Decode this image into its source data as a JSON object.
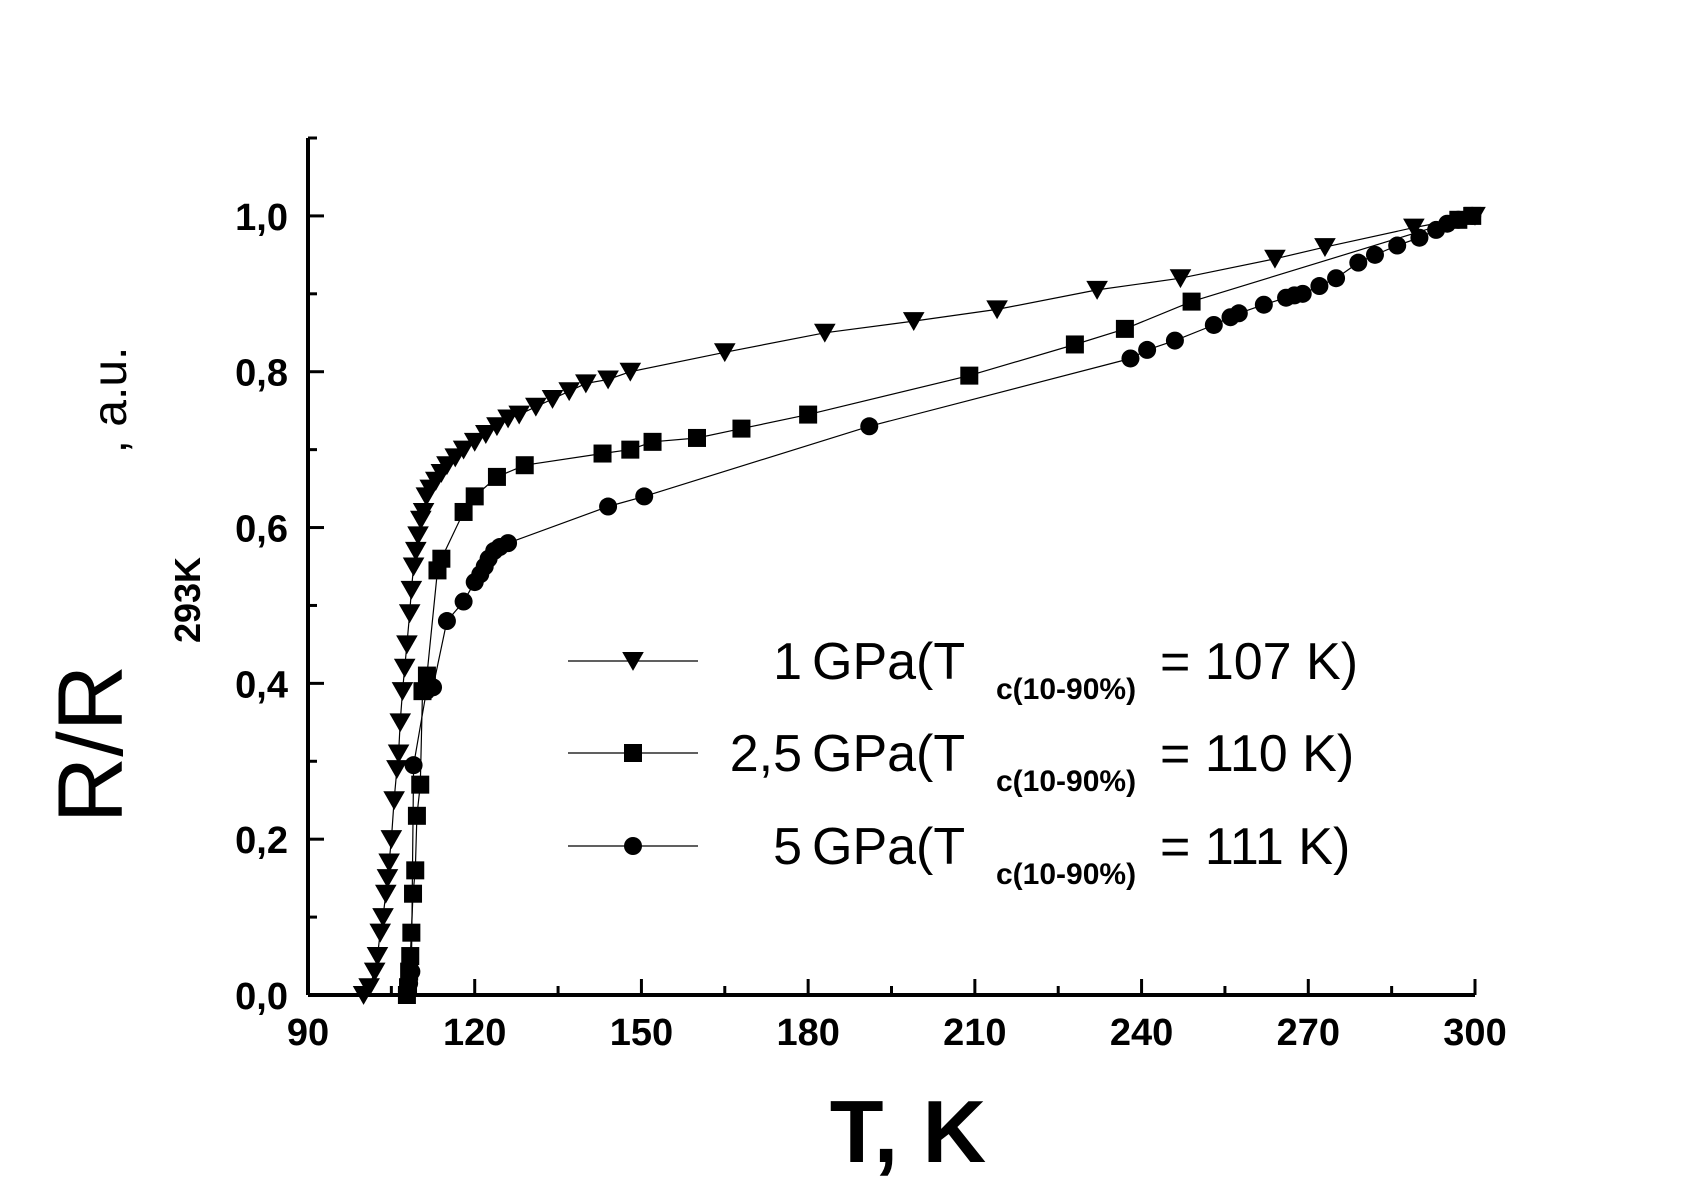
{
  "chart_data": {
    "type": "scatter",
    "title": "",
    "xlabel": "T, K",
    "ylabel_main": "R/R",
    "ylabel_sub": "293K",
    "ylabel_unit": ", a.u.",
    "xlim": [
      90,
      300
    ],
    "ylim": [
      0,
      1.1
    ],
    "x_ticks": [
      90,
      120,
      150,
      180,
      210,
      240,
      270,
      300
    ],
    "x_tick_labels": [
      "90",
      "120",
      "150",
      "180",
      "210",
      "240",
      "270",
      "300"
    ],
    "y_ticks": [
      0,
      0.2,
      0.4,
      0.6,
      0.8,
      1.0
    ],
    "y_tick_labels": [
      "0,0",
      "0,2",
      "0,4",
      "0,6",
      "0,8",
      "1,0"
    ],
    "grid": false,
    "legend_position": "center-right",
    "series": [
      {
        "pressure": "1",
        "unit": "GPa",
        "tc_sub": "c(10-90%)",
        "tc_value": "= 107 K)",
        "marker": "triangle-down",
        "points": [
          [
            100,
            0.0
          ],
          [
            101,
            0.01
          ],
          [
            102,
            0.03
          ],
          [
            102.5,
            0.05
          ],
          [
            103,
            0.08
          ],
          [
            103.5,
            0.1
          ],
          [
            104,
            0.13
          ],
          [
            104.3,
            0.15
          ],
          [
            104.6,
            0.17
          ],
          [
            105,
            0.2
          ],
          [
            105.5,
            0.25
          ],
          [
            106,
            0.29
          ],
          [
            106.3,
            0.31
          ],
          [
            106.6,
            0.35
          ],
          [
            107,
            0.39
          ],
          [
            107.4,
            0.42
          ],
          [
            107.8,
            0.45
          ],
          [
            108.3,
            0.49
          ],
          [
            108.6,
            0.52
          ],
          [
            109,
            0.55
          ],
          [
            109.4,
            0.57
          ],
          [
            109.8,
            0.59
          ],
          [
            110.3,
            0.61
          ],
          [
            110.8,
            0.62
          ],
          [
            111.3,
            0.64
          ],
          [
            112,
            0.65
          ],
          [
            113,
            0.66
          ],
          [
            114,
            0.67
          ],
          [
            115,
            0.68
          ],
          [
            116.5,
            0.69
          ],
          [
            118,
            0.7
          ],
          [
            120,
            0.71
          ],
          [
            122,
            0.72
          ],
          [
            124,
            0.73
          ],
          [
            126,
            0.74
          ],
          [
            128,
            0.745
          ],
          [
            131,
            0.755
          ],
          [
            134,
            0.765
          ],
          [
            137,
            0.775
          ],
          [
            140,
            0.785
          ],
          [
            144,
            0.79
          ],
          [
            148,
            0.8
          ],
          [
            165,
            0.825
          ],
          [
            183,
            0.85
          ],
          [
            199,
            0.865
          ],
          [
            214,
            0.88
          ],
          [
            232,
            0.905
          ],
          [
            247,
            0.92
          ],
          [
            264,
            0.945
          ],
          [
            273,
            0.96
          ],
          [
            289,
            0.985
          ],
          [
            300,
            1.0
          ]
        ]
      },
      {
        "pressure": "2,5",
        "unit": "GPa",
        "tc_sub": "c(10-90%)",
        "tc_value": "= 110 K)",
        "marker": "square",
        "points": [
          [
            107.8,
            0.0
          ],
          [
            108,
            0.01
          ],
          [
            108.2,
            0.03
          ],
          [
            108.4,
            0.05
          ],
          [
            108.6,
            0.08
          ],
          [
            108.9,
            0.13
          ],
          [
            109.3,
            0.16
          ],
          [
            109.6,
            0.23
          ],
          [
            110.2,
            0.27
          ],
          [
            110.6,
            0.39
          ],
          [
            111.4,
            0.41
          ],
          [
            113.3,
            0.545
          ],
          [
            114,
            0.56
          ],
          [
            118,
            0.62
          ],
          [
            120,
            0.64
          ],
          [
            124,
            0.665
          ],
          [
            129,
            0.68
          ],
          [
            143,
            0.695
          ],
          [
            148,
            0.7
          ],
          [
            152,
            0.71
          ],
          [
            160,
            0.715
          ],
          [
            168,
            0.727
          ],
          [
            180,
            0.745
          ],
          [
            209,
            0.795
          ],
          [
            228,
            0.835
          ],
          [
            237,
            0.855
          ],
          [
            249,
            0.89
          ],
          [
            297,
            0.995
          ],
          [
            299.5,
            1.0
          ]
        ]
      },
      {
        "pressure": "5",
        "unit": "GPa",
        "tc_sub": "c(10-90%)",
        "tc_value": "= 111 K)",
        "marker": "circle",
        "points": [
          [
            107.8,
            0.005
          ],
          [
            108.2,
            0.015
          ],
          [
            108.6,
            0.03
          ],
          [
            109,
            0.295
          ],
          [
            111.3,
            0.39
          ],
          [
            111.8,
            0.395
          ],
          [
            112.5,
            0.395
          ],
          [
            115,
            0.48
          ],
          [
            118,
            0.505
          ],
          [
            120,
            0.53
          ],
          [
            121,
            0.54
          ],
          [
            121.8,
            0.55
          ],
          [
            122.5,
            0.56
          ],
          [
            123.5,
            0.57
          ],
          [
            124.5,
            0.575
          ],
          [
            126,
            0.58
          ],
          [
            144,
            0.627
          ],
          [
            150.5,
            0.64
          ],
          [
            191,
            0.73
          ],
          [
            238,
            0.817
          ],
          [
            241,
            0.828
          ],
          [
            246,
            0.84
          ],
          [
            253,
            0.86
          ],
          [
            256,
            0.87
          ],
          [
            257.5,
            0.875
          ],
          [
            262,
            0.886
          ],
          [
            266,
            0.895
          ],
          [
            267.5,
            0.898
          ],
          [
            269,
            0.9
          ],
          [
            272,
            0.91
          ],
          [
            275,
            0.92
          ],
          [
            279,
            0.94
          ],
          [
            282,
            0.95
          ],
          [
            286,
            0.962
          ],
          [
            290,
            0.972
          ],
          [
            293,
            0.982
          ],
          [
            295,
            0.99
          ],
          [
            297,
            0.995
          ],
          [
            299.5,
            1.0
          ]
        ]
      }
    ]
  }
}
